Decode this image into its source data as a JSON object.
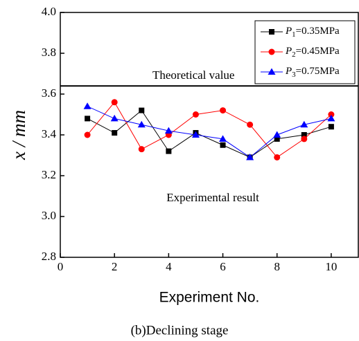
{
  "chart_data": {
    "type": "line",
    "caption": "(b)Declining stage",
    "x_label": "Experiment No.",
    "y_label": "x / mm",
    "x": [
      1,
      2,
      3,
      4,
      5,
      6,
      7,
      8,
      9,
      10
    ],
    "series": [
      {
        "name": "P1=0.35MPa",
        "color": "#000000",
        "marker": "square",
        "values": [
          3.48,
          3.41,
          3.52,
          3.32,
          3.41,
          3.35,
          3.29,
          3.38,
          3.4,
          3.44
        ]
      },
      {
        "name": "P2=0.45MPa",
        "color": "#ff0000",
        "marker": "circle",
        "values": [
          3.4,
          3.56,
          3.33,
          3.4,
          3.5,
          3.52,
          3.45,
          3.29,
          3.38,
          3.5
        ]
      },
      {
        "name": "P3=0.75MPa",
        "color": "#0000ff",
        "marker": "triangle",
        "values": [
          3.54,
          3.48,
          3.45,
          3.42,
          3.4,
          3.38,
          3.29,
          3.4,
          3.45,
          3.48
        ]
      }
    ],
    "theoretical_value": 3.64,
    "theoretical_label": "Theoretical value",
    "experimental_label": "Experimental result",
    "xlim": [
      0,
      11
    ],
    "ylim": [
      2.8,
      4.0
    ],
    "xticks": [
      0,
      2,
      4,
      6,
      8,
      10
    ],
    "yticks": [
      {
        "value": 2.8,
        "label": "2.8"
      },
      {
        "value": 3.0,
        "label": "3.0"
      },
      3.2,
      3.4,
      3.6,
      3.8,
      {
        "value": 4.0,
        "label": "4.0"
      }
    ],
    "legend": "upper right"
  }
}
